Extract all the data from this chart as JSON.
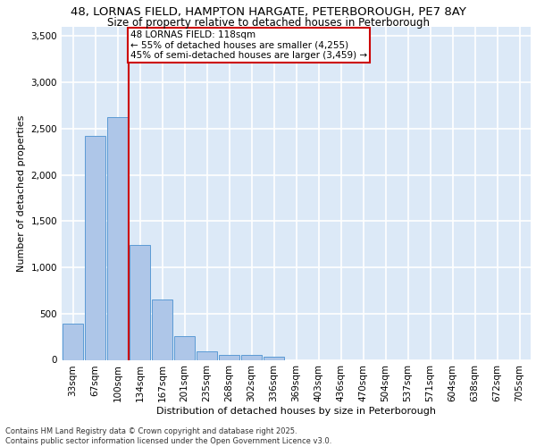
{
  "title_line1": "48, LORNAS FIELD, HAMPTON HARGATE, PETERBOROUGH, PE7 8AY",
  "title_line2": "Size of property relative to detached houses in Peterborough",
  "xlabel": "Distribution of detached houses by size in Peterborough",
  "ylabel": "Number of detached properties",
  "footer_line1": "Contains HM Land Registry data © Crown copyright and database right 2025.",
  "footer_line2": "Contains public sector information licensed under the Open Government Licence v3.0.",
  "bar_labels": [
    "33sqm",
    "67sqm",
    "100sqm",
    "134sqm",
    "167sqm",
    "201sqm",
    "235sqm",
    "268sqm",
    "302sqm",
    "336sqm",
    "369sqm",
    "403sqm",
    "436sqm",
    "470sqm",
    "504sqm",
    "537sqm",
    "571sqm",
    "604sqm",
    "638sqm",
    "672sqm",
    "705sqm"
  ],
  "bar_values": [
    390,
    2420,
    2620,
    1240,
    650,
    260,
    90,
    55,
    50,
    35,
    0,
    0,
    0,
    0,
    0,
    0,
    0,
    0,
    0,
    0,
    0
  ],
  "bar_color": "#aec6e8",
  "bar_edge_color": "#5b9bd5",
  "background_color": "#dce9f7",
  "grid_color": "#ffffff",
  "annotation_text": "48 LORNAS FIELD: 118sqm\n← 55% of detached houses are smaller (4,255)\n45% of semi-detached houses are larger (3,459) →",
  "annotation_box_color": "#ffffff",
  "annotation_box_edge_color": "#cc0000",
  "vline_color": "#cc0000",
  "property_line_bin_index": 2.515,
  "ylim": [
    0,
    3600
  ],
  "yticks": [
    0,
    500,
    1000,
    1500,
    2000,
    2500,
    3000,
    3500
  ],
  "title_fontsize": 9.5,
  "subtitle_fontsize": 8.5,
  "axis_label_fontsize": 8,
  "tick_fontsize": 7.5,
  "annotation_fontsize": 7.5,
  "footer_fontsize": 6
}
